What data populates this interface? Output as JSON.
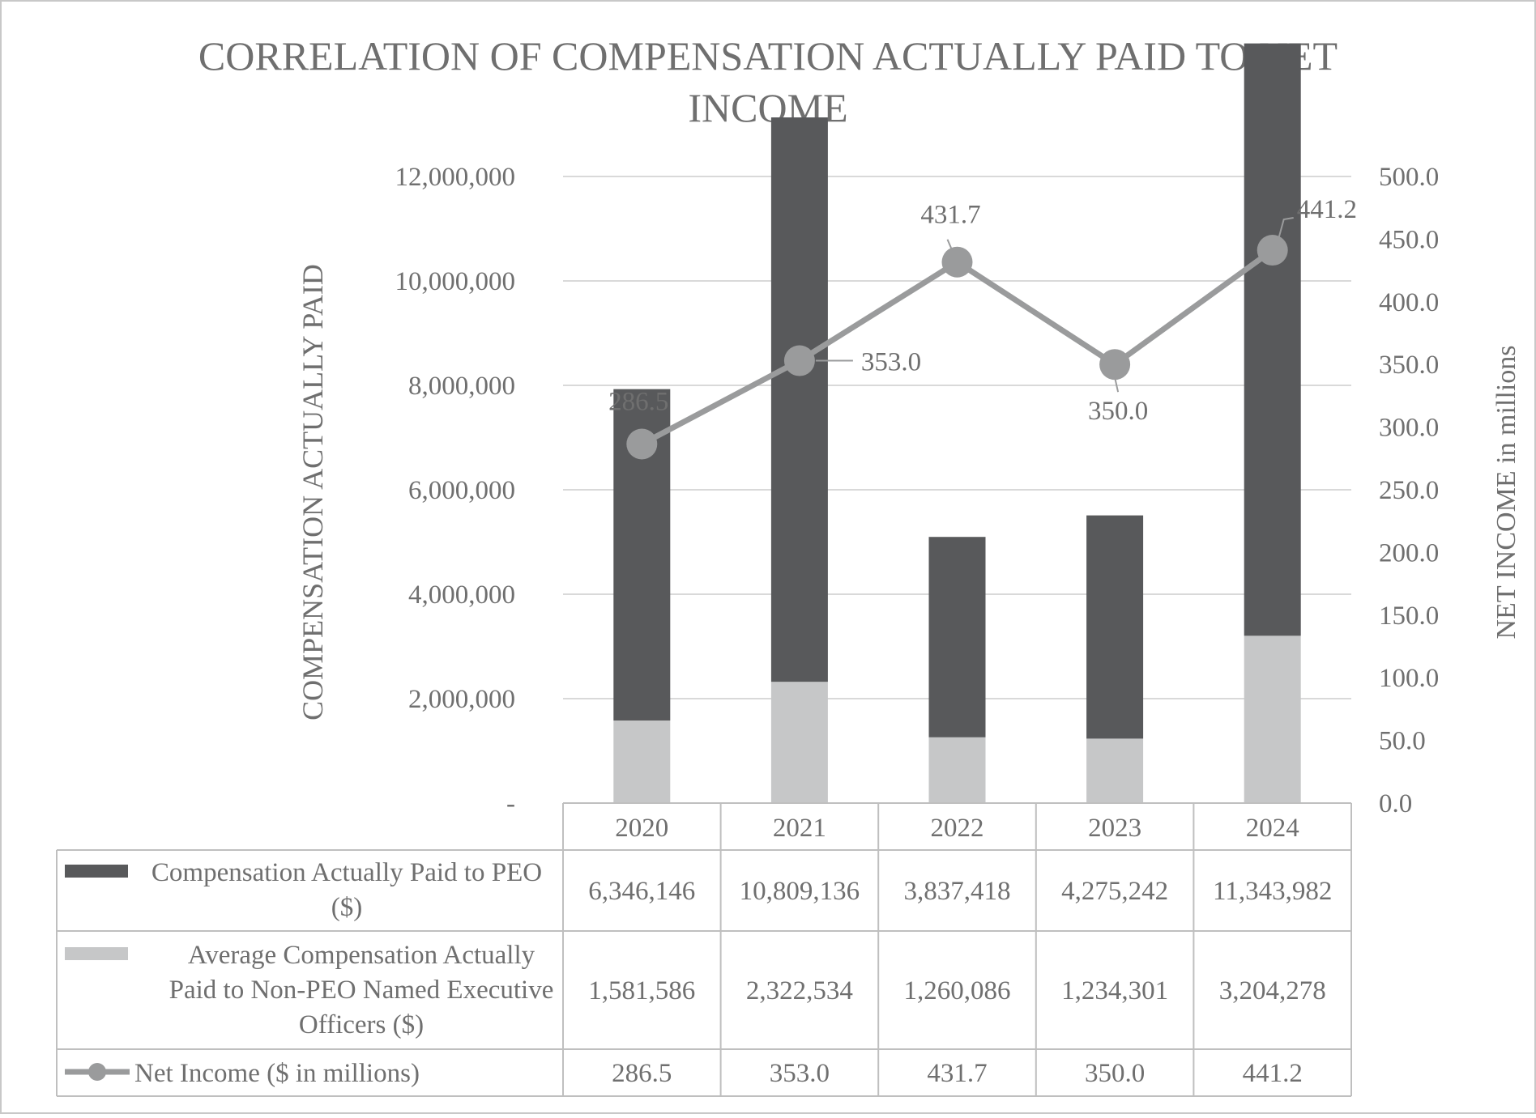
{
  "colors": {
    "peo_bar": "#58595b",
    "non_peo_bar": "#c6c7c8",
    "line": "#9a9b9c",
    "text": "#6f6f6f",
    "grid": "#d9d9d9",
    "table_border": "#bfbfbf",
    "frame": "#c8c8c8"
  },
  "chart_data": {
    "type": "bar",
    "subtype": "stacked bar with line on secondary axis",
    "title": "CORRELATION OF COMPENSATION ACTUALLY PAID TO NET INCOME",
    "title_lines": [
      "CORRELATION OF COMPENSATION ACTUALLY PAID TO NET",
      "INCOME"
    ],
    "categories": [
      "2020",
      "2021",
      "2022",
      "2023",
      "2024"
    ],
    "ylabel": "COMPENSATION ACTUALLY PAID",
    "y2label": "NET INCOME in millions",
    "ylim": [
      0,
      12000000
    ],
    "y2lim": [
      0,
      500
    ],
    "yticks": [
      "-",
      "2,000,000",
      "4,000,000",
      "6,000,000",
      "8,000,000",
      "10,000,000",
      "12,000,000"
    ],
    "y2ticks": [
      "0.0",
      "50.0",
      "100.0",
      "150.0",
      "200.0",
      "250.0",
      "300.0",
      "350.0",
      "400.0",
      "450.0",
      "500.0"
    ],
    "grid": true,
    "legend": "data-table",
    "series": [
      {
        "name": "Compensation Actually Paid to PEO ($)",
        "type": "bar",
        "values": [
          6346146,
          10809136,
          3837418,
          4275242,
          11343982
        ],
        "value_labels": [
          "6,346,146",
          "10,809,136",
          "3,837,418",
          "4,275,242",
          "11,343,982"
        ]
      },
      {
        "name": "Average Compensation Actually Paid to Non-PEO Named Executive Officers ($)",
        "type": "bar",
        "values": [
          1581586,
          2322534,
          1260086,
          1234301,
          3204278
        ],
        "value_labels": [
          "1,581,586",
          "2,322,534",
          "1,260,086",
          "1,234,301",
          "3,204,278"
        ]
      },
      {
        "name": "Net Income ($ in millions)",
        "type": "line",
        "axis": "secondary",
        "values": [
          286.5,
          353.0,
          431.7,
          350.0,
          441.2
        ],
        "value_labels": [
          "286.5",
          "353.0",
          "431.7",
          "350.0",
          "441.2"
        ]
      }
    ],
    "legend_lines": [
      [
        "Compensation Actually Paid to PEO",
        "($)"
      ],
      [
        "Average Compensation Actually",
        "Paid to Non-PEO Named Executive",
        "Officers ($)"
      ],
      [
        "Net Income ($ in millions)"
      ]
    ]
  }
}
